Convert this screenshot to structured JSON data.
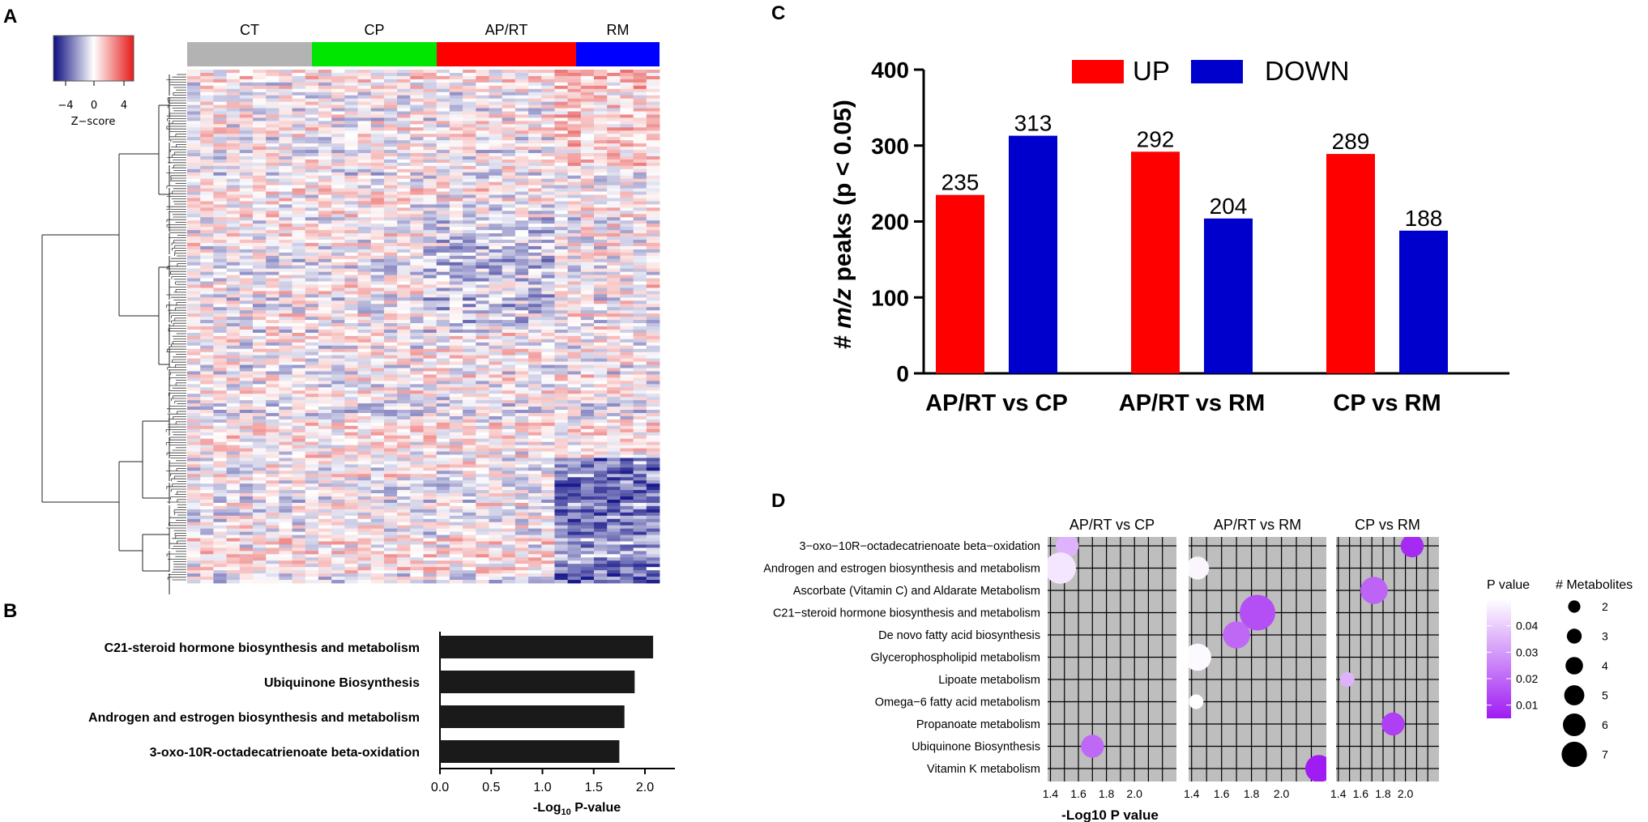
{
  "panels": {
    "a": "A",
    "b": "B",
    "c": "C",
    "d": "D"
  },
  "chart_data": [
    {
      "id": "A",
      "type": "heatmap",
      "groups": [
        "CT",
        "CP",
        "AP/RT",
        "RM"
      ],
      "group_colors": [
        "#b3b3b3",
        "#00e600",
        "#ff0000",
        "#0000ff"
      ],
      "colorbar": {
        "label": "Z−score",
        "ticks": [
          "−4",
          "0",
          "4"
        ],
        "min": -4,
        "max": 4,
        "colors": [
          "#0d0d80",
          "#ffffff",
          "#e61a1a"
        ]
      }
    },
    {
      "id": "B",
      "type": "bar",
      "orientation": "horizontal",
      "categories": [
        "C21-steroid hormone biosynthesis and metabolism",
        "Ubiquinone Biosynthesis",
        "Androgen and estrogen biosynthesis and metabolism",
        "3-oxo-10R-octadecatrienoate beta-oxidation"
      ],
      "values": [
        2.08,
        1.9,
        1.8,
        1.75
      ],
      "xlabel_main": "-Log",
      "xlabel_sub": "10",
      "xlabel_tail": " P-value",
      "xlim": [
        0,
        2.2
      ],
      "xticks": [
        "0.0",
        "0.5",
        "1.0",
        "1.5",
        "2.0"
      ],
      "bar_color": "#1a1a1a"
    },
    {
      "id": "C",
      "type": "bar",
      "categories": [
        "AP/RT vs CP",
        "AP/RT vs RM",
        "CP vs RM"
      ],
      "series": [
        {
          "name": "UP",
          "color": "#ff0000",
          "values": [
            235,
            292,
            289
          ]
        },
        {
          "name": "DOWN",
          "color": "#0000cc",
          "values": [
            313,
            204,
            188
          ]
        }
      ],
      "value_labels": [
        [
          "235",
          "292",
          "289"
        ],
        [
          "313",
          "204",
          "188"
        ]
      ],
      "ylabel_pre": "# ",
      "ylabel_italic": "m/z",
      "ylabel_post": " peaks (p < 0.05)",
      "ylim": [
        0,
        400
      ],
      "yticks": [
        "0",
        "100",
        "200",
        "300",
        "400"
      ],
      "legend": "top-center"
    },
    {
      "id": "D",
      "type": "scatter",
      "facets": [
        "AP/RT vs CP",
        "AP/RT vs RM",
        "CP vs RM"
      ],
      "pathways": [
        "3−oxo−10R−octadecatrienoate beta−oxidation",
        "Androgen and estrogen biosynthesis and metabolism",
        "Ascorbate (Vitamin C) and Aldarate Metabolism",
        "C21−steroid hormone biosynthesis and metabolism",
        "De novo fatty acid biosynthesis",
        "Glycerophospholipid metabolism",
        "Lipoate metabolism",
        "Omega−6 fatty acid metabolism",
        "Propanoate metabolism",
        "Ubiquinone Biosynthesis",
        "Vitamin K metabolism"
      ],
      "xlim": [
        1.38,
        2.3
      ],
      "xticks": [
        "1.4",
        "1.6",
        "1.8",
        "2.0"
      ],
      "xlabel": "-Log10 P value",
      "points": [
        {
          "facet": 0,
          "row": 0,
          "x": 1.52,
          "p": 0.035,
          "size": 4
        },
        {
          "facet": 0,
          "row": 1,
          "x": 1.47,
          "p": 0.045,
          "size": 6
        },
        {
          "facet": 0,
          "row": 9,
          "x": 1.7,
          "p": 0.02,
          "size": 4
        },
        {
          "facet": 1,
          "row": 1,
          "x": 1.44,
          "p": 0.048,
          "size": 4
        },
        {
          "facet": 1,
          "row": 3,
          "x": 1.84,
          "p": 0.015,
          "size": 7
        },
        {
          "facet": 1,
          "row": 4,
          "x": 1.7,
          "p": 0.02,
          "size": 5
        },
        {
          "facet": 1,
          "row": 5,
          "x": 1.44,
          "p": 0.049,
          "size": 5
        },
        {
          "facet": 1,
          "row": 7,
          "x": 1.43,
          "p": 0.05,
          "size": 2
        },
        {
          "facet": 1,
          "row": 10,
          "x": 2.25,
          "p": 0.005,
          "size": 5
        },
        {
          "facet": 2,
          "row": 0,
          "x": 2.06,
          "p": 0.008,
          "size": 4
        },
        {
          "facet": 2,
          "row": 2,
          "x": 1.72,
          "p": 0.019,
          "size": 5
        },
        {
          "facet": 2,
          "row": 6,
          "x": 1.48,
          "p": 0.035,
          "size": 2
        },
        {
          "facet": 2,
          "row": 8,
          "x": 1.89,
          "p": 0.012,
          "size": 4
        }
      ],
      "color_legend": {
        "title": "P value",
        "ticks": [
          "0.04",
          "0.03",
          "0.02",
          "0.01"
        ],
        "tick_values": [
          0.04,
          0.03,
          0.02,
          0.01
        ],
        "min": 0.005,
        "max": 0.05,
        "low_color": "#9f1cf2",
        "high_color": "#ffffff"
      },
      "size_legend": {
        "title": "# Metabolites",
        "values": [
          "2",
          "3",
          "4",
          "5",
          "6",
          "7"
        ]
      }
    }
  ]
}
